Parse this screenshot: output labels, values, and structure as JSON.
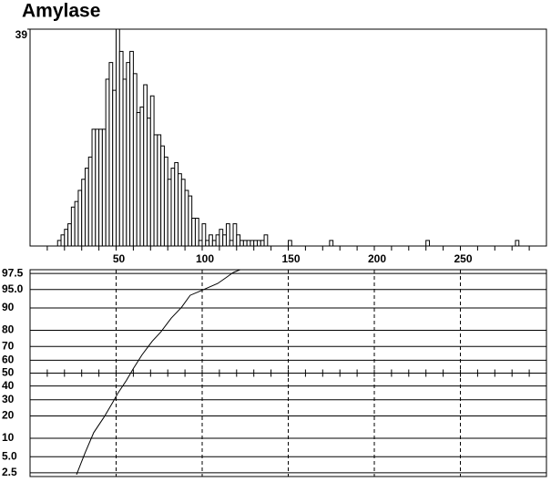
{
  "chart_data": [
    {
      "type": "histogram",
      "title": "Amylase",
      "bins": [
        16,
        18,
        20,
        22,
        24,
        26,
        28,
        30,
        32,
        34,
        36,
        38,
        40,
        42,
        44,
        46,
        48,
        50,
        52,
        54,
        56,
        58,
        60,
        62,
        64,
        66,
        68,
        70,
        72,
        74,
        76,
        78,
        80,
        82,
        84,
        86,
        88,
        90,
        92,
        94,
        96,
        98,
        100,
        102,
        104,
        106,
        108,
        110,
        112,
        114,
        116,
        118,
        120,
        122,
        124,
        126,
        128,
        130,
        132,
        134,
        136,
        138,
        140,
        142,
        144,
        146,
        148,
        150,
        152,
        154,
        156,
        158,
        160,
        162,
        164,
        166,
        168,
        170,
        172,
        174,
        176,
        178,
        180,
        182,
        184,
        186,
        188,
        190,
        192,
        194,
        196,
        198,
        200,
        202,
        204,
        206,
        208,
        210,
        212,
        214,
        216,
        218,
        220,
        222,
        224,
        226,
        228,
        230,
        232,
        234,
        236,
        238,
        240,
        242,
        244,
        246,
        248,
        250,
        252,
        254,
        256,
        258,
        260,
        262,
        264,
        266,
        268,
        270,
        272,
        274,
        276,
        278,
        280,
        282,
        284
      ],
      "values": [
        1,
        2,
        3,
        4,
        7,
        8,
        10,
        12,
        14,
        16,
        21,
        21,
        21,
        21,
        30,
        33,
        28,
        39,
        35,
        30,
        33,
        35,
        31,
        24,
        25,
        29,
        23,
        27,
        20,
        20,
        18,
        16,
        12,
        14,
        15,
        13,
        12,
        10,
        9,
        5,
        5,
        1,
        4,
        1,
        2,
        1,
        2,
        3,
        2,
        4,
        1,
        4,
        2,
        1,
        1,
        1,
        1,
        1,
        1,
        1,
        2,
        0,
        0,
        0,
        0,
        0,
        0,
        1,
        0,
        0,
        0,
        0,
        0,
        0,
        0,
        0,
        0,
        0,
        0,
        1,
        0,
        0,
        0,
        0,
        0,
        0,
        0,
        0,
        0,
        0,
        0,
        0,
        0,
        0,
        0,
        0,
        0,
        0,
        0,
        0,
        0,
        0,
        0,
        0,
        0,
        0,
        0,
        1,
        0,
        0,
        0,
        0,
        0,
        0,
        0,
        0,
        0,
        0,
        0,
        0,
        0,
        0,
        0,
        0,
        0,
        0,
        0,
        0,
        0,
        0,
        0,
        0,
        0,
        1
      ],
      "xlim": [
        0,
        300
      ],
      "ylim": [
        0,
        39
      ],
      "yticks": [
        39
      ],
      "xticks": [
        50,
        100,
        150,
        200,
        250
      ],
      "x_minor_ticks": [
        10,
        20,
        30,
        40,
        50,
        60,
        70,
        80,
        90,
        100,
        110,
        120,
        130,
        140,
        150,
        160,
        170,
        180,
        190,
        200,
        210,
        220,
        230,
        240,
        250,
        260,
        270,
        280,
        290
      ],
      "color": "#ffffff"
    },
    {
      "type": "line",
      "y_scale": "probability",
      "x": [
        27,
        32,
        37,
        43,
        48,
        51,
        56,
        60,
        65,
        71,
        76,
        82,
        88,
        93,
        99,
        109,
        114,
        118,
        122
      ],
      "values": [
        2.3,
        5.9,
        12.1,
        19.4,
        28.2,
        34.6,
        44.3,
        53.6,
        64.0,
        73.5,
        79.1,
        86.0,
        90.2,
        93.7,
        94.7,
        96.1,
        97.0,
        97.6,
        97.9
      ],
      "xlim": [
        0,
        300
      ],
      "ylim": [
        2.1,
        97.9
      ],
      "xticks": [
        50,
        100,
        150,
        200,
        250
      ],
      "x_minor_ticks": [
        10,
        20,
        30,
        40,
        50,
        60,
        70,
        80,
        90,
        100,
        110,
        120,
        130,
        140,
        150,
        160,
        170,
        180,
        190,
        200,
        210,
        220,
        230,
        240,
        250,
        260,
        270,
        280,
        290
      ],
      "yticks": [
        {
          "value": 97.5,
          "label": "97.5"
        },
        {
          "value": 95,
          "label": "95.0"
        },
        90,
        80,
        70,
        60,
        50,
        40,
        30,
        20,
        10,
        {
          "value": 5,
          "label": "5.0"
        },
        {
          "value": 2.5,
          "label": "2.5"
        }
      ],
      "color": "#000000"
    }
  ]
}
